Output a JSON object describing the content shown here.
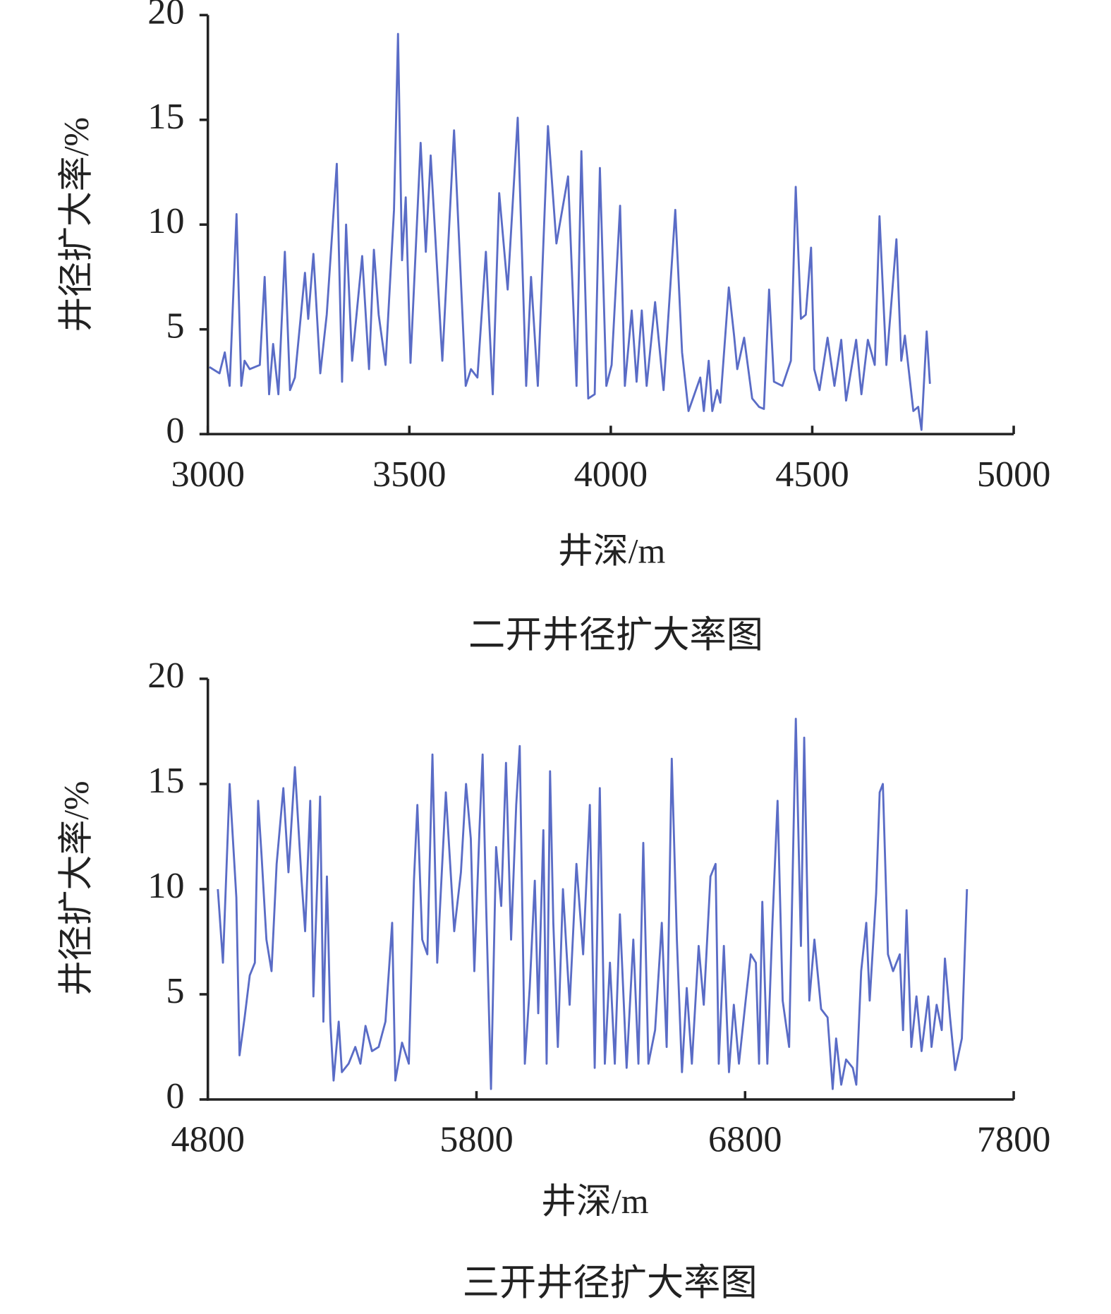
{
  "chart_data": [
    {
      "type": "line",
      "title": "二开井径扩大率图",
      "xlabel": "井深/m",
      "ylabel": "井径扩大率/%",
      "xlim": [
        3000,
        5000
      ],
      "xticks": [
        3000,
        3500,
        4000,
        4500,
        5000
      ],
      "ylim": [
        0,
        20
      ],
      "yticks": [
        0,
        5,
        10,
        15,
        20
      ],
      "color": "#5a6cc6",
      "x": [
        3004,
        3029,
        3042,
        3054,
        3071,
        3083,
        3091,
        3104,
        3129,
        3141,
        3152,
        3162,
        3175,
        3191,
        3204,
        3216,
        3241,
        3249,
        3262,
        3279,
        3295,
        3320,
        3333,
        3343,
        3358,
        3383,
        3400,
        3412,
        3424,
        3441,
        3462,
        3472,
        3482,
        3491,
        3503,
        3528,
        3541,
        3553,
        3582,
        3611,
        3640,
        3653,
        3669,
        3690,
        3707,
        3723,
        3744,
        3769,
        3790,
        3802,
        3819,
        3844,
        3865,
        3894,
        3915,
        3927,
        3944,
        3960,
        3973,
        3989,
        4002,
        4023,
        4035,
        4052,
        4064,
        4077,
        4089,
        4110,
        4131,
        4160,
        4177,
        4193,
        4222,
        4231,
        4243,
        4252,
        4264,
        4272,
        4293,
        4306,
        4314,
        4331,
        4351,
        4368,
        4380,
        4393,
        4405,
        4426,
        4447,
        4459,
        4472,
        4484,
        4497,
        4505,
        4518,
        4538,
        4555,
        4572,
        4584,
        4609,
        4622,
        4638,
        4655,
        4667,
        4684,
        4709,
        4721,
        4730,
        4751,
        4763,
        4771,
        4784,
        4792
      ],
      "values": [
        3.2,
        2.9,
        3.9,
        2.3,
        10.5,
        2.3,
        3.5,
        3.1,
        3.3,
        7.5,
        1.9,
        4.3,
        1.9,
        8.7,
        2.1,
        2.7,
        7.7,
        5.5,
        8.6,
        2.9,
        5.7,
        12.9,
        2.5,
        10.0,
        3.5,
        8.5,
        3.1,
        8.8,
        5.7,
        3.3,
        10.7,
        19.1,
        8.3,
        11.3,
        3.4,
        13.9,
        8.7,
        13.3,
        3.5,
        14.5,
        2.3,
        3.1,
        2.7,
        8.7,
        1.9,
        11.5,
        6.9,
        15.1,
        2.3,
        7.5,
        2.3,
        14.7,
        9.1,
        12.3,
        2.3,
        13.5,
        1.7,
        1.9,
        12.7,
        2.3,
        3.3,
        10.9,
        2.3,
        5.9,
        2.5,
        5.9,
        2.3,
        6.3,
        2.1,
        10.7,
        3.9,
        1.1,
        2.7,
        1.1,
        3.5,
        1.1,
        2.1,
        1.5,
        7.0,
        4.7,
        3.1,
        4.6,
        1.7,
        1.3,
        1.2,
        6.9,
        2.5,
        2.3,
        3.5,
        11.8,
        5.5,
        5.7,
        8.9,
        3.1,
        2.1,
        4.6,
        2.3,
        4.5,
        1.6,
        4.5,
        1.9,
        4.5,
        3.3,
        10.4,
        3.3,
        9.3,
        3.5,
        4.7,
        1.1,
        1.3,
        0.2,
        4.9,
        2.4
      ]
    },
    {
      "type": "line",
      "title": "三开井径扩大率图",
      "xlabel": "井深/m",
      "ylabel": "井径扩大率/%",
      "xlim": [
        4800,
        7800
      ],
      "xticks": [
        4800,
        5800,
        6800,
        7800
      ],
      "ylim": [
        0,
        20
      ],
      "yticks": [
        0,
        5,
        10,
        15,
        20
      ],
      "color": "#5a6cc6",
      "x": [
        4837,
        4856,
        4881,
        4906,
        4918,
        4937,
        4956,
        4975,
        4987,
        5000,
        5018,
        5037,
        5056,
        5081,
        5100,
        5124,
        5149,
        5162,
        5181,
        5193,
        5218,
        5230,
        5243,
        5256,
        5268,
        5287,
        5299,
        5324,
        5349,
        5368,
        5387,
        5411,
        5436,
        5461,
        5486,
        5498,
        5523,
        5548,
        5567,
        5580,
        5598,
        5617,
        5636,
        5654,
        5686,
        5717,
        5742,
        5761,
        5779,
        5792,
        5811,
        5823,
        5836,
        5854,
        5873,
        5892,
        5910,
        5929,
        5948,
        5961,
        5980,
        5998,
        6017,
        6030,
        6049,
        6061,
        6074,
        6086,
        6103,
        6122,
        6147,
        6172,
        6197,
        6222,
        6240,
        6259,
        6278,
        6297,
        6315,
        6334,
        6359,
        6384,
        6403,
        6421,
        6440,
        6465,
        6490,
        6508,
        6527,
        6546,
        6565,
        6583,
        6602,
        6627,
        6646,
        6671,
        6690,
        6702,
        6721,
        6740,
        6758,
        6777,
        6802,
        6821,
        6840,
        6852,
        6864,
        6883,
        6902,
        6921,
        6940,
        6964,
        6989,
        7008,
        7020,
        7039,
        7058,
        7083,
        7107,
        7126,
        7139,
        7158,
        7176,
        7201,
        7214,
        7232,
        7251,
        7264,
        7288,
        7301,
        7313,
        7332,
        7351,
        7376,
        7388,
        7401,
        7419,
        7438,
        7457,
        7482,
        7494,
        7513,
        7532,
        7544,
        7563,
        7582,
        7607,
        7626
      ],
      "values": [
        10.0,
        6.5,
        15.0,
        9.6,
        2.1,
        3.9,
        5.9,
        6.5,
        14.2,
        11.6,
        7.6,
        6.1,
        11.2,
        14.8,
        10.8,
        15.8,
        10.4,
        8.0,
        14.2,
        4.9,
        14.4,
        3.7,
        10.6,
        3.7,
        0.9,
        3.7,
        1.3,
        1.7,
        2.5,
        1.7,
        3.5,
        2.3,
        2.5,
        3.7,
        8.4,
        0.9,
        2.7,
        1.7,
        10.4,
        14.0,
        7.6,
        6.9,
        16.4,
        6.5,
        14.6,
        8.0,
        10.8,
        15.0,
        12.4,
        6.1,
        12.8,
        16.4,
        9.2,
        0.5,
        12.0,
        9.2,
        16.0,
        7.6,
        14.0,
        16.8,
        1.7,
        5.3,
        10.4,
        4.1,
        12.8,
        1.7,
        15.6,
        8.4,
        2.5,
        10.0,
        4.5,
        11.2,
        6.9,
        14.0,
        1.5,
        14.8,
        1.7,
        6.5,
        1.7,
        8.8,
        1.5,
        7.6,
        1.7,
        12.2,
        1.7,
        3.3,
        8.4,
        2.5,
        16.2,
        7.6,
        1.3,
        5.3,
        1.7,
        7.3,
        4.5,
        10.6,
        11.2,
        1.7,
        7.3,
        1.3,
        4.5,
        1.7,
        4.7,
        6.9,
        6.5,
        1.7,
        9.4,
        1.7,
        8.4,
        14.2,
        4.7,
        2.5,
        18.1,
        7.3,
        17.2,
        4.7,
        7.6,
        4.3,
        3.9,
        0.5,
        2.9,
        0.7,
        1.9,
        1.5,
        0.7,
        6.1,
        8.4,
        4.7,
        9.8,
        14.6,
        15.0,
        6.9,
        6.1,
        6.9,
        3.3,
        9.0,
        2.5,
        4.9,
        2.3,
        4.9,
        2.5,
        4.5,
        3.3,
        6.7,
        3.9,
        1.4,
        2.9,
        10.0
      ]
    }
  ]
}
